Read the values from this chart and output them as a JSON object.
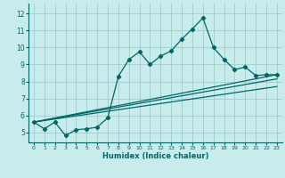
{
  "xlabel": "Humidex (Indice chaleur)",
  "bg_color": "#c8ecec",
  "grid_color": "#a0cccc",
  "line_color": "#006666",
  "xlim": [
    -0.5,
    23.5
  ],
  "ylim": [
    4.4,
    12.6
  ],
  "xticks": [
    0,
    1,
    2,
    3,
    4,
    5,
    6,
    7,
    8,
    9,
    10,
    11,
    12,
    13,
    14,
    15,
    16,
    17,
    18,
    19,
    20,
    21,
    22,
    23
  ],
  "yticks": [
    5,
    6,
    7,
    8,
    9,
    10,
    11,
    12
  ],
  "line1_x": [
    0,
    1,
    2,
    3,
    4,
    5,
    6,
    7,
    8,
    9,
    10,
    11,
    12,
    13,
    14,
    15,
    16,
    17,
    18,
    19,
    20,
    21,
    22,
    23
  ],
  "line1_y": [
    5.6,
    5.2,
    5.6,
    4.8,
    5.15,
    5.2,
    5.3,
    5.85,
    8.3,
    9.3,
    9.75,
    9.0,
    9.5,
    9.8,
    10.5,
    11.1,
    11.75,
    10.0,
    9.3,
    8.7,
    8.85,
    8.35,
    8.4,
    8.4
  ],
  "line2_y_start": 5.6,
  "line2_y_end": 8.4,
  "line3_y_start": 5.6,
  "line3_y_end": 8.15,
  "line4_y_start": 5.6,
  "line4_y_end": 7.7
}
